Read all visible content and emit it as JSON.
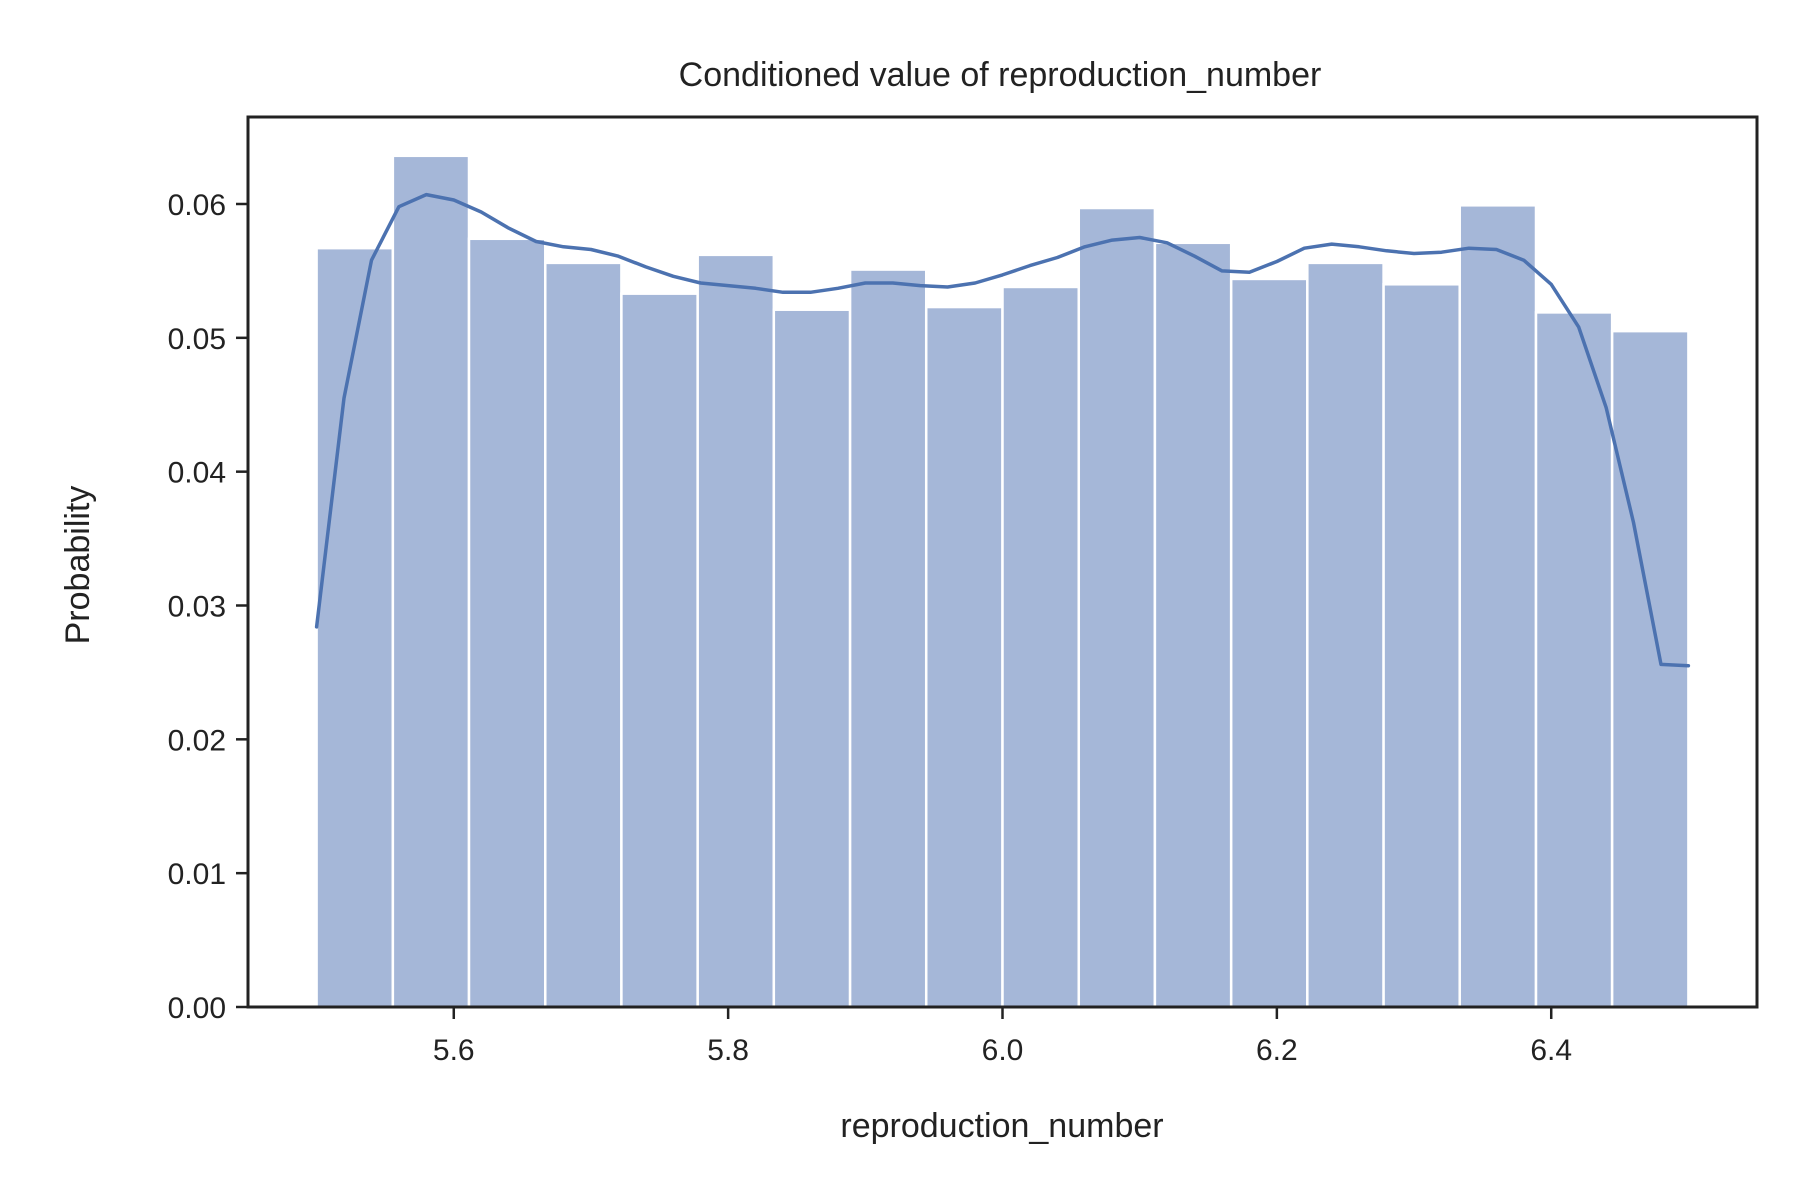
{
  "chart_data": {
    "type": "bar",
    "title": "Conditioned value of reproduction_number",
    "xlabel": "reproduction_number",
    "ylabel": "Probability",
    "xlim": [
      5.45,
      6.55
    ],
    "ylim": [
      0.0,
      0.0665
    ],
    "x_ticks": [
      "5.6",
      "5.8",
      "6.0",
      "6.2",
      "6.4"
    ],
    "y_ticks": [
      "0.00",
      "0.01",
      "0.02",
      "0.03",
      "0.04",
      "0.05",
      "0.06"
    ],
    "bin_edges": [
      5.5,
      5.5556,
      5.6111,
      5.6667,
      5.7222,
      5.7778,
      5.8333,
      5.8889,
      5.9444,
      6.0,
      6.0556,
      6.1111,
      6.1667,
      6.2222,
      6.2778,
      6.3333,
      6.3889,
      6.4444,
      6.5
    ],
    "values": [
      0.0567,
      0.0636,
      0.0574,
      0.0556,
      0.0533,
      0.0562,
      0.0521,
      0.0551,
      0.0523,
      0.0538,
      0.0597,
      0.0571,
      0.0544,
      0.0556,
      0.054,
      0.0599,
      0.0519,
      0.0505
    ],
    "bar_color": "#a5b7d8",
    "kde": {
      "name": "",
      "color": "#4c72b0",
      "x": [
        5.5,
        5.52,
        5.54,
        5.56,
        5.58,
        5.6,
        5.62,
        5.64,
        5.66,
        5.68,
        5.7,
        5.72,
        5.74,
        5.76,
        5.78,
        5.8,
        5.82,
        5.84,
        5.86,
        5.88,
        5.9,
        5.92,
        5.94,
        5.96,
        5.98,
        6.0,
        6.02,
        6.04,
        6.06,
        6.08,
        6.1,
        6.12,
        6.14,
        6.16,
        6.18,
        6.2,
        6.22,
        6.24,
        6.26,
        6.28,
        6.3,
        6.32,
        6.34,
        6.36,
        6.38,
        6.4,
        6.42,
        6.44,
        6.46,
        6.48,
        6.5
      ],
      "y": [
        0.0284,
        0.0455,
        0.0558,
        0.0598,
        0.0607,
        0.0603,
        0.0594,
        0.0582,
        0.0572,
        0.0568,
        0.0566,
        0.0561,
        0.0553,
        0.0546,
        0.0541,
        0.0539,
        0.0537,
        0.0534,
        0.0534,
        0.0537,
        0.0541,
        0.0541,
        0.0539,
        0.0538,
        0.0541,
        0.0547,
        0.0554,
        0.056,
        0.0568,
        0.0573,
        0.0575,
        0.0571,
        0.0561,
        0.055,
        0.0549,
        0.0557,
        0.0567,
        0.057,
        0.0568,
        0.0565,
        0.0563,
        0.0564,
        0.0567,
        0.0566,
        0.0558,
        0.054,
        0.0508,
        0.0448,
        0.0362,
        0.0256,
        0.0255
      ]
    },
    "grid": false,
    "legend": "none"
  }
}
